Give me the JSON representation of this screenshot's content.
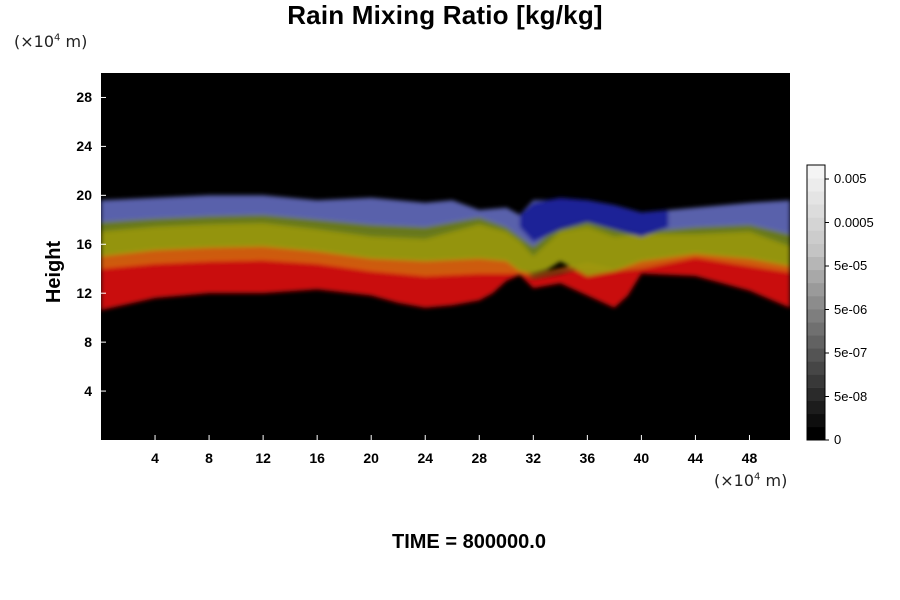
{
  "chart_data": {
    "type": "heatmap",
    "title": "Rain Mixing Ratio [kg/kg]",
    "ylabel": "Height",
    "xlabel": "",
    "y_unit_prefix": "(×10",
    "y_unit_exp": "4",
    "y_unit_suffix": " m)",
    "x_unit_prefix": "(×10",
    "x_unit_exp": "4",
    "x_unit_suffix": " m)",
    "xlim": [
      0,
      51
    ],
    "ylim": [
      0,
      30
    ],
    "xticks": [
      4,
      8,
      12,
      16,
      20,
      24,
      28,
      32,
      36,
      40,
      44,
      48
    ],
    "yticks": [
      4,
      8,
      12,
      16,
      20,
      24,
      28
    ],
    "footer": "TIME = 800000.0",
    "background_color": "#000000",
    "colorbar": {
      "labels": [
        "0.005",
        "0.0005",
        "5e-05",
        "5e-06",
        "5e-07",
        "5e-08",
        "0"
      ],
      "levels": 21,
      "colors_dark_to_light": [
        "#000000",
        "#0e0e0e",
        "#1c1c1c",
        "#2a2a2a",
        "#383838",
        "#464646",
        "#545454",
        "#626262",
        "#707070",
        "#7e7e7e",
        "#8c8c8c",
        "#9a9a9a",
        "#a8a8a8",
        "#b6b6b6",
        "#c4c4c4",
        "#cccccc",
        "#d4d4d4",
        "#dcdcdc",
        "#e4e4e4",
        "#ececec",
        "#f4f4f4"
      ]
    },
    "layers": [
      {
        "name": "red",
        "color": "#d40a0a",
        "top": [
          [
            0,
            14.2
          ],
          [
            4,
            14.6
          ],
          [
            8,
            14.8
          ],
          [
            12,
            14.9
          ],
          [
            16,
            14.6
          ],
          [
            20,
            14.0
          ],
          [
            24,
            13.6
          ],
          [
            28,
            13.8
          ],
          [
            30,
            13.8
          ],
          [
            31,
            13.7
          ],
          [
            32,
            13.2
          ],
          [
            34,
            13.6
          ],
          [
            36,
            14.2
          ],
          [
            38,
            13.8
          ],
          [
            40,
            14.0
          ],
          [
            44,
            15.0
          ],
          [
            48,
            14.3
          ],
          [
            51,
            13.8
          ]
        ],
        "bottom": [
          [
            0,
            10.6
          ],
          [
            4,
            11.6
          ],
          [
            8,
            12.0
          ],
          [
            12,
            12.0
          ],
          [
            16,
            12.3
          ],
          [
            20,
            11.8
          ],
          [
            22,
            11.2
          ],
          [
            24,
            10.8
          ],
          [
            26,
            11.0
          ],
          [
            28,
            11.4
          ],
          [
            29,
            12.0
          ],
          [
            30,
            13.0
          ],
          [
            31,
            13.5
          ],
          [
            32,
            12.4
          ],
          [
            34,
            12.8
          ],
          [
            36,
            11.8
          ],
          [
            38,
            10.8
          ],
          [
            39,
            11.8
          ],
          [
            40,
            13.6
          ],
          [
            44,
            13.4
          ],
          [
            48,
            12.2
          ],
          [
            51,
            10.8
          ]
        ]
      },
      {
        "name": "orange",
        "color": "#d86010",
        "top": [
          [
            0,
            15.2
          ],
          [
            4,
            15.7
          ],
          [
            8,
            15.9
          ],
          [
            12,
            16.0
          ],
          [
            16,
            15.6
          ],
          [
            20,
            15.0
          ],
          [
            24,
            14.8
          ],
          [
            28,
            15.0
          ],
          [
            30,
            14.8
          ],
          [
            31,
            14.0
          ],
          [
            32,
            13.5
          ],
          [
            36,
            14.5
          ],
          [
            38,
            14.0
          ],
          [
            40,
            14.8
          ],
          [
            44,
            15.4
          ],
          [
            48,
            15.0
          ],
          [
            51,
            14.4
          ]
        ],
        "bottom": [
          [
            0,
            14.0
          ],
          [
            4,
            14.4
          ],
          [
            8,
            14.6
          ],
          [
            12,
            14.7
          ],
          [
            16,
            14.4
          ],
          [
            20,
            13.8
          ],
          [
            24,
            13.4
          ],
          [
            28,
            13.6
          ],
          [
            30,
            13.6
          ],
          [
            31,
            13.6
          ],
          [
            32,
            13.3
          ],
          [
            36,
            14.2
          ],
          [
            38,
            13.8
          ],
          [
            40,
            14.0
          ],
          [
            44,
            14.9
          ],
          [
            48,
            14.2
          ],
          [
            51,
            13.7
          ]
        ]
      },
      {
        "name": "yellow-green",
        "color": "#9c9c10",
        "top": [
          [
            0,
            17.2
          ],
          [
            4,
            17.6
          ],
          [
            8,
            17.8
          ],
          [
            12,
            17.9
          ],
          [
            16,
            17.4
          ],
          [
            20,
            16.8
          ],
          [
            24,
            16.6
          ],
          [
            26,
            17.2
          ],
          [
            28,
            17.8
          ],
          [
            30,
            17.2
          ],
          [
            31,
            16.4
          ],
          [
            32,
            15.2
          ],
          [
            33,
            16.2
          ],
          [
            34,
            17.4
          ],
          [
            36,
            17.8
          ],
          [
            38,
            16.8
          ],
          [
            40,
            17.0
          ],
          [
            44,
            17.0
          ],
          [
            48,
            17.2
          ],
          [
            51,
            16.0
          ]
        ],
        "bottom": [
          [
            0,
            15.0
          ],
          [
            4,
            15.5
          ],
          [
            8,
            15.7
          ],
          [
            12,
            15.8
          ],
          [
            16,
            15.4
          ],
          [
            20,
            14.8
          ],
          [
            24,
            14.6
          ],
          [
            28,
            14.8
          ],
          [
            30,
            14.6
          ],
          [
            31,
            13.8
          ],
          [
            32,
            13.6
          ],
          [
            33,
            13.9
          ],
          [
            34,
            14.6
          ],
          [
            36,
            13.4
          ],
          [
            38,
            13.8
          ],
          [
            40,
            14.6
          ],
          [
            44,
            15.2
          ],
          [
            48,
            14.8
          ],
          [
            51,
            14.2
          ]
        ]
      },
      {
        "name": "olive",
        "color": "#6e7e1a",
        "top": [
          [
            0,
            18.0
          ],
          [
            4,
            18.3
          ],
          [
            8,
            18.5
          ],
          [
            12,
            18.6
          ],
          [
            16,
            18.2
          ],
          [
            20,
            17.8
          ],
          [
            24,
            17.6
          ],
          [
            26,
            18.0
          ],
          [
            28,
            18.4
          ],
          [
            30,
            17.6
          ],
          [
            31,
            16.8
          ],
          [
            32,
            16.0
          ],
          [
            34,
            17.8
          ],
          [
            36,
            18.2
          ],
          [
            38,
            17.6
          ],
          [
            40,
            17.2
          ],
          [
            44,
            17.6
          ],
          [
            48,
            17.8
          ],
          [
            51,
            17.0
          ]
        ],
        "bottom": [
          [
            0,
            17.0
          ],
          [
            4,
            17.4
          ],
          [
            8,
            17.6
          ],
          [
            12,
            17.7
          ],
          [
            16,
            17.2
          ],
          [
            20,
            16.6
          ],
          [
            24,
            16.4
          ],
          [
            26,
            17.0
          ],
          [
            28,
            17.6
          ],
          [
            30,
            17.0
          ],
          [
            31,
            16.2
          ],
          [
            32,
            15.0
          ],
          [
            34,
            17.0
          ],
          [
            36,
            17.4
          ],
          [
            38,
            16.6
          ],
          [
            40,
            16.8
          ],
          [
            44,
            16.8
          ],
          [
            48,
            17.0
          ],
          [
            51,
            15.8
          ]
        ]
      },
      {
        "name": "blue-top",
        "color": "#5e66b4",
        "top": [
          [
            0,
            19.6
          ],
          [
            4,
            19.8
          ],
          [
            8,
            20.0
          ],
          [
            12,
            20.0
          ],
          [
            16,
            19.6
          ],
          [
            20,
            19.8
          ],
          [
            24,
            19.4
          ],
          [
            26,
            19.6
          ],
          [
            28,
            18.8
          ],
          [
            30,
            19.0
          ],
          [
            31,
            18.4
          ],
          [
            32,
            19.6
          ],
          [
            36,
            19.6
          ],
          [
            38,
            19.2
          ],
          [
            40,
            18.6
          ],
          [
            44,
            19.0
          ],
          [
            48,
            19.4
          ],
          [
            51,
            19.6
          ]
        ],
        "bottom": [
          [
            0,
            17.8
          ],
          [
            4,
            18.1
          ],
          [
            8,
            18.3
          ],
          [
            12,
            18.4
          ],
          [
            16,
            18.0
          ],
          [
            20,
            17.6
          ],
          [
            24,
            17.4
          ],
          [
            26,
            17.8
          ],
          [
            28,
            18.2
          ],
          [
            30,
            17.4
          ],
          [
            31,
            16.6
          ],
          [
            32,
            15.8
          ],
          [
            34,
            17.6
          ],
          [
            36,
            18.0
          ],
          [
            38,
            17.4
          ],
          [
            40,
            17.0
          ],
          [
            44,
            17.4
          ],
          [
            48,
            17.6
          ],
          [
            51,
            16.8
          ]
        ]
      },
      {
        "name": "dark-blue",
        "color": "#1a1e96",
        "top": [
          [
            31,
            18.4
          ],
          [
            32,
            19.4
          ],
          [
            34,
            19.8
          ],
          [
            36,
            19.6
          ],
          [
            38,
            19.2
          ],
          [
            40,
            18.6
          ],
          [
            42,
            18.8
          ]
        ],
        "bottom": [
          [
            31,
            17.4
          ],
          [
            32,
            16.2
          ],
          [
            34,
            17.2
          ],
          [
            36,
            17.8
          ],
          [
            38,
            17.2
          ],
          [
            40,
            16.6
          ],
          [
            42,
            17.4
          ]
        ]
      }
    ]
  }
}
